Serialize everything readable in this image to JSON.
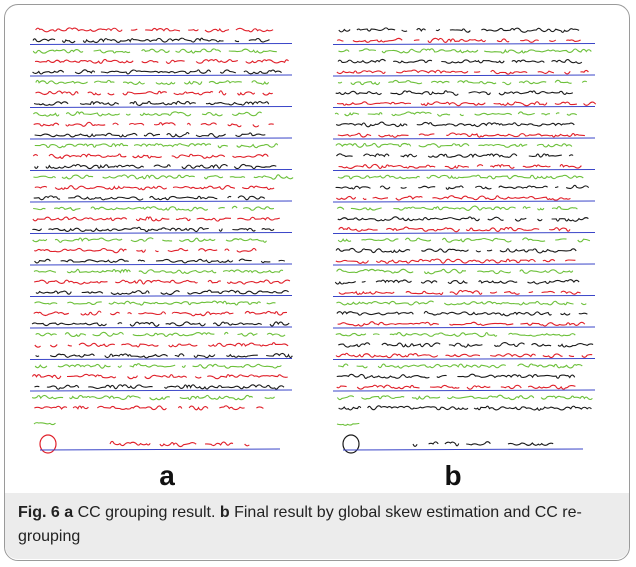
{
  "figure": {
    "panels": [
      {
        "id": "a",
        "label": "a"
      },
      {
        "id": "b",
        "label": "b"
      }
    ],
    "caption": {
      "prefix": "Fig. 6",
      "part_a_label": "a",
      "part_a_text": " CC grouping result. ",
      "part_b_label": "b",
      "part_b_text": " Final result by global skew estimation and CC re-grouping"
    },
    "colors": {
      "line_red": "#e0202a",
      "line_green": "#6cc03a",
      "line_black": "#1a1a1a",
      "baseline_blue": "#3a45c8"
    }
  }
}
